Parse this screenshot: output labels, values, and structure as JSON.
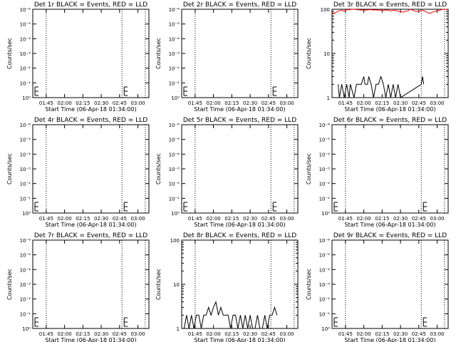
{
  "chart_data": [
    {
      "type": "line",
      "title": "Det 1r BLACK = Events, RED = LLD",
      "xlabel": "Start Time (06-Apr-18 01:34:00)",
      "ylabel": "Counts/sec",
      "scale": "log-exp",
      "ytick_labels": [
        "10⁰",
        "10⁻¹",
        "10⁻²",
        "10⁻³",
        "10⁻⁴",
        "10⁻⁵",
        "10⁻⁶"
      ],
      "xtick_labels": [
        "01:45",
        "02:00",
        "02:15",
        "02:30",
        "02:45",
        "03:00"
      ],
      "xlim_min": [
        0,
        95
      ],
      "xtick_min": [
        11,
        26,
        41,
        56,
        71,
        86
      ],
      "dotted_lines_min": [
        11,
        73,
        92
      ],
      "series": [
        {
          "color": "#000000",
          "x": [],
          "y": []
        },
        {
          "color": "#ff0000",
          "x": [],
          "y": []
        }
      ]
    },
    {
      "type": "line",
      "title": "Det 2r BLACK = Events, RED = LLD",
      "xlabel": "Start Time (06-Apr-18 01:34:00)",
      "ylabel": "Counts/sec",
      "scale": "log-exp",
      "ytick_labels": [
        "10⁰",
        "10⁻¹",
        "10⁻²",
        "10⁻³",
        "10⁻⁴",
        "10⁻⁵",
        "10⁻⁶"
      ],
      "xtick_labels": [
        "01:45",
        "02:00",
        "02:15",
        "02:30",
        "02:45",
        "03:00"
      ],
      "xlim_min": [
        0,
        95
      ],
      "xtick_min": [
        11,
        26,
        41,
        56,
        71,
        86
      ],
      "dotted_lines_min": [
        11,
        73,
        92
      ],
      "series": [
        {
          "color": "#000000",
          "x": [],
          "y": []
        },
        {
          "color": "#ff0000",
          "x": [],
          "y": []
        }
      ]
    },
    {
      "type": "line",
      "title": "Det 3r BLACK = Events, RED = LLD",
      "xlabel": "Start Time (06-Apr-18 01:34:00)",
      "ylabel": "Counts/sec",
      "scale": "log",
      "ytick_labels": [
        "1",
        "10",
        "100"
      ],
      "ytick_values": [
        1,
        10,
        100
      ],
      "xtick_labels": [
        "01:45",
        "02:00",
        "02:15",
        "02:30",
        "02:45",
        "03:00"
      ],
      "xlim_min": [
        0,
        95
      ],
      "xtick_min": [
        11,
        26,
        41,
        56,
        71,
        86
      ],
      "dotted_lines_min": [
        11,
        73,
        92
      ],
      "series": [
        {
          "color": "#000000",
          "x": [
            5,
            6,
            8,
            10,
            12,
            14,
            15,
            18,
            20,
            22,
            24,
            26,
            27,
            29,
            30,
            32,
            34,
            36,
            38,
            40,
            42,
            44,
            46,
            48,
            50,
            52,
            54,
            56,
            73,
            74,
            75
          ],
          "y": [
            2,
            1,
            2,
            1,
            2,
            1,
            2,
            1,
            2,
            2,
            2,
            3,
            2,
            2,
            3,
            2,
            1,
            2,
            2,
            3,
            2,
            1,
            2,
            1,
            2,
            1,
            2,
            1,
            2,
            3,
            2
          ]
        },
        {
          "color": "#ff0000",
          "x": [
            0,
            2,
            4,
            6,
            8,
            10,
            12,
            14,
            16,
            18,
            20,
            22,
            24,
            26,
            28,
            30,
            32,
            34,
            36,
            38,
            40,
            42,
            44,
            46,
            48,
            50,
            52,
            54,
            56,
            58,
            60,
            62,
            64,
            66,
            68,
            70,
            72,
            74,
            76,
            78,
            80,
            82,
            84,
            86,
            88,
            90,
            92,
            94
          ],
          "y": [
            85,
            80,
            88,
            92,
            95,
            90,
            98,
            97,
            99,
            100,
            98,
            97,
            96,
            95,
            96,
            97,
            98,
            96,
            97,
            95,
            96,
            94,
            97,
            95,
            92,
            94,
            95,
            90,
            88,
            86,
            90,
            92,
            100,
            95,
            90,
            88,
            92,
            95,
            90,
            84,
            80,
            86,
            90,
            92,
            95,
            99,
            100,
            99
          ]
        }
      ]
    },
    {
      "type": "line",
      "title": "Det 4r BLACK = Events, RED = LLD",
      "xlabel": "Start Time (06-Apr-18 01:34:00)",
      "ylabel": "Counts/sec",
      "scale": "log-exp",
      "ytick_labels": [
        "10⁰",
        "10⁻¹",
        "10⁻²",
        "10⁻³",
        "10⁻⁴",
        "10⁻⁵",
        "10⁻⁶"
      ],
      "xtick_labels": [
        "01:45",
        "02:00",
        "02:15",
        "02:30",
        "02:45",
        "03:00"
      ],
      "xlim_min": [
        0,
        95
      ],
      "xtick_min": [
        11,
        26,
        41,
        56,
        71,
        86
      ],
      "dotted_lines_min": [
        11,
        73,
        92
      ],
      "series": [
        {
          "color": "#000000",
          "x": [],
          "y": []
        },
        {
          "color": "#ff0000",
          "x": [],
          "y": []
        }
      ]
    },
    {
      "type": "line",
      "title": "Det 5r BLACK = Events, RED = LLD",
      "xlabel": "Start Time (06-Apr-18 01:34:00)",
      "ylabel": "Counts/sec",
      "scale": "log-exp",
      "ytick_labels": [
        "10⁰",
        "10⁻¹",
        "10⁻²",
        "10⁻³",
        "10⁻⁴",
        "10⁻⁵",
        "10⁻⁶"
      ],
      "xtick_labels": [
        "01:45",
        "02:00",
        "02:15",
        "02:30",
        "02:45",
        "03:00"
      ],
      "xlim_min": [
        0,
        95
      ],
      "xtick_min": [
        11,
        26,
        41,
        56,
        71,
        86
      ],
      "dotted_lines_min": [
        11,
        73,
        92
      ],
      "series": [
        {
          "color": "#000000",
          "x": [],
          "y": []
        },
        {
          "color": "#ff0000",
          "x": [],
          "y": []
        }
      ]
    },
    {
      "type": "line",
      "title": "Det 6r BLACK = Events, RED = LLD",
      "xlabel": "Start Time (06-Apr-18 01:34:00)",
      "ylabel": "Counts/sec",
      "scale": "log-exp",
      "ytick_labels": [
        "10⁰",
        "10⁻¹",
        "10⁻²",
        "10⁻³",
        "10⁻⁴",
        "10⁻⁵",
        "10⁻⁶"
      ],
      "xtick_labels": [
        "01:45",
        "02:00",
        "02:15",
        "02:30",
        "02:45",
        "03:00"
      ],
      "xlim_min": [
        0,
        95
      ],
      "xtick_min": [
        11,
        26,
        41,
        56,
        71,
        86
      ],
      "dotted_lines_min": [
        11,
        73,
        92
      ],
      "series": [
        {
          "color": "#000000",
          "x": [],
          "y": []
        },
        {
          "color": "#ff0000",
          "x": [],
          "y": []
        }
      ]
    },
    {
      "type": "line",
      "title": "Det 7r BLACK = Events, RED = LLD",
      "xlabel": "Start Time (06-Apr-18 01:34:00)",
      "ylabel": "Counts/sec",
      "scale": "log-exp",
      "ytick_labels": [
        "10⁰",
        "10⁻¹",
        "10⁻²",
        "10⁻³",
        "10⁻⁴",
        "10⁻⁵",
        "10⁻⁶"
      ],
      "xtick_labels": [
        "01:45",
        "02:00",
        "02:15",
        "02:30",
        "02:45",
        "03:00"
      ],
      "xlim_min": [
        0,
        95
      ],
      "xtick_min": [
        11,
        26,
        41,
        56,
        71,
        86
      ],
      "dotted_lines_min": [
        11,
        73,
        92
      ],
      "series": [
        {
          "color": "#000000",
          "x": [],
          "y": []
        },
        {
          "color": "#ff0000",
          "x": [],
          "y": []
        }
      ]
    },
    {
      "type": "line",
      "title": "Det 8r BLACK = Events, RED = LLD",
      "xlabel": "Start Time (06-Apr-18 01:34:00)",
      "ylabel": "Counts/sec",
      "scale": "log",
      "ytick_labels": [
        "1",
        "10",
        "100"
      ],
      "ytick_values": [
        1,
        10,
        100
      ],
      "xtick_labels": [
        "01:45",
        "02:00",
        "02:15",
        "02:30",
        "02:45",
        "03:00"
      ],
      "xlim_min": [
        0,
        95
      ],
      "xtick_min": [
        11,
        26,
        41,
        56,
        71,
        86
      ],
      "dotted_lines_min": [
        11,
        73,
        92
      ],
      "series": [
        {
          "color": "#000000",
          "x": [
            2,
            4,
            6,
            8,
            10,
            12,
            14,
            16,
            18,
            20,
            22,
            24,
            26,
            28,
            30,
            32,
            34,
            36,
            38,
            40,
            42,
            44,
            46,
            48,
            50,
            52,
            54,
            56,
            58,
            60,
            62,
            64,
            66,
            68,
            70,
            72,
            74,
            76,
            78
          ],
          "y": [
            1,
            2,
            1,
            2,
            1,
            2,
            2,
            1,
            2,
            2,
            3,
            2,
            3,
            4,
            2,
            3,
            2,
            2,
            2,
            1,
            2,
            2,
            1,
            2,
            1,
            2,
            1,
            2,
            1,
            1,
            2,
            1,
            1,
            2,
            1,
            2,
            2,
            3,
            2
          ]
        },
        {
          "color": "#ff0000",
          "x": [],
          "y": []
        }
      ]
    },
    {
      "type": "line",
      "title": "Det 9r BLACK = Events, RED = LLD",
      "xlabel": "Start Time (06-Apr-18 01:34:00)",
      "ylabel": "Counts/sec",
      "scale": "log-exp",
      "ytick_labels": [
        "10⁰",
        "10⁻¹",
        "10⁻²",
        "10⁻³",
        "10⁻⁴",
        "10⁻⁵",
        "10⁻⁶"
      ],
      "xtick_labels": [
        "01:45",
        "02:00",
        "02:15",
        "02:30",
        "02:45",
        "03:00"
      ],
      "xlim_min": [
        0,
        95
      ],
      "xtick_min": [
        11,
        26,
        41,
        56,
        71,
        86
      ],
      "dotted_lines_min": [
        11,
        73,
        92
      ],
      "series": [
        {
          "color": "#000000",
          "x": [],
          "y": []
        },
        {
          "color": "#ff0000",
          "x": [],
          "y": []
        }
      ]
    }
  ]
}
